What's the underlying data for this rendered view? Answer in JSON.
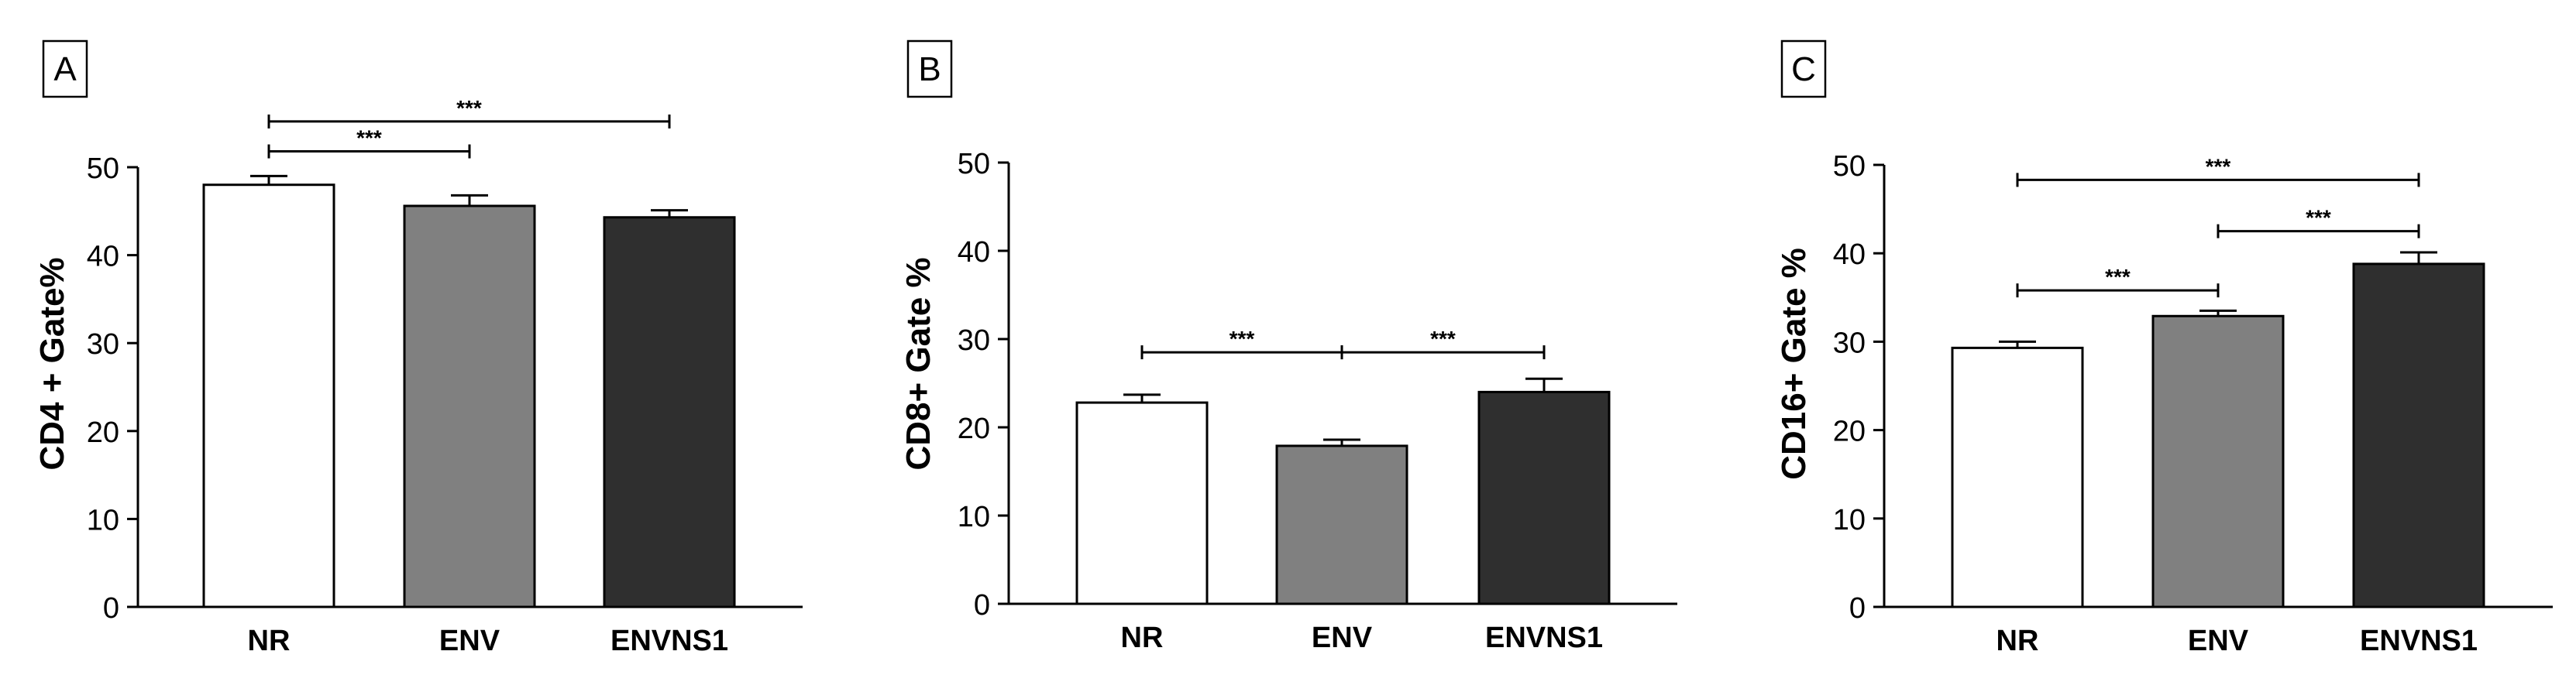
{
  "colors": {
    "NR": "#ffffff",
    "ENV": "#808080",
    "ENVNS1": "#2f2f2f",
    "stroke": "#000000"
  },
  "chart_data": [
    {
      "type": "bar",
      "panel_label": "A",
      "ylabel": "CD4 + Gate%",
      "categories": [
        "NR",
        "ENV",
        "ENVNS1"
      ],
      "values": [
        48.0,
        45.6,
        44.3
      ],
      "errors": [
        1.0,
        1.2,
        0.8
      ],
      "ylim": [
        0,
        50
      ],
      "yticks": [
        0,
        10,
        20,
        30,
        40,
        50
      ],
      "grid": false,
      "significance": [
        {
          "from": 0,
          "to": 1,
          "y": 51.8,
          "label": "***"
        },
        {
          "from": 0,
          "to": 2,
          "y": 55.2,
          "label": "***"
        }
      ]
    },
    {
      "type": "bar",
      "panel_label": "B",
      "ylabel": "CD8+ Gate %",
      "categories": [
        "NR",
        "ENV",
        "ENVNS1"
      ],
      "values": [
        22.8,
        17.9,
        24.0
      ],
      "errors": [
        0.9,
        0.7,
        1.5
      ],
      "ylim": [
        0,
        50
      ],
      "yticks": [
        0,
        10,
        20,
        30,
        40,
        50
      ],
      "grid": false,
      "significance": [
        {
          "from": 0,
          "to": 1,
          "y": 28.5,
          "label": "***"
        },
        {
          "from": 1,
          "to": 2,
          "y": 28.5,
          "label": "***"
        }
      ]
    },
    {
      "type": "bar",
      "panel_label": "C",
      "ylabel": "CD16+ Gate %",
      "categories": [
        "NR",
        "ENV",
        "ENVNS1"
      ],
      "values": [
        29.3,
        32.9,
        38.8
      ],
      "errors": [
        0.7,
        0.6,
        1.3
      ],
      "ylim": [
        0,
        50
      ],
      "yticks": [
        0,
        10,
        20,
        30,
        40,
        50
      ],
      "grid": false,
      "significance": [
        {
          "from": 0,
          "to": 1,
          "y": 35.8,
          "label": "***"
        },
        {
          "from": 1,
          "to": 2,
          "y": 42.5,
          "label": "***"
        },
        {
          "from": 0,
          "to": 2,
          "y": 48.3,
          "label": "***"
        }
      ]
    }
  ]
}
